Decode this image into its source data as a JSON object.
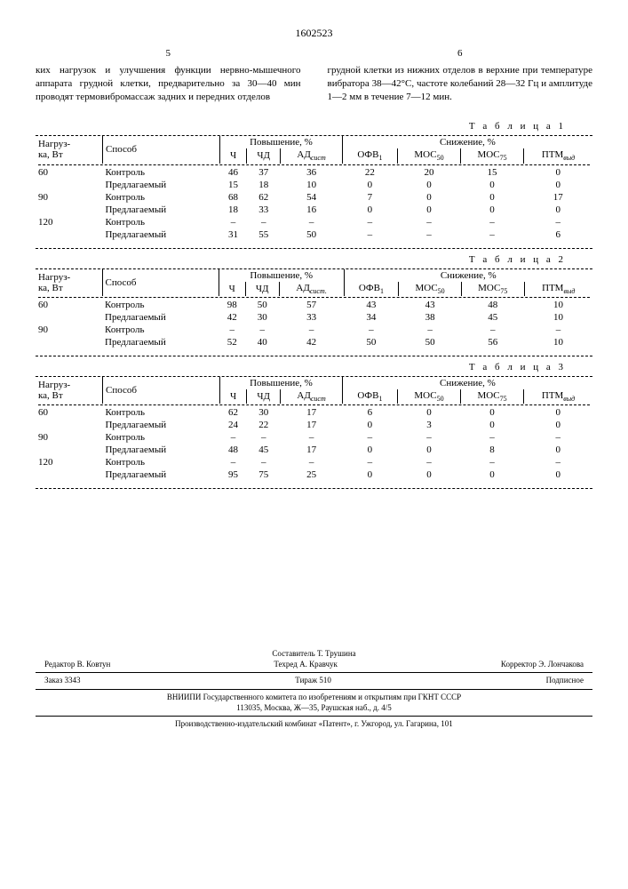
{
  "docnum": "1602523",
  "colLeft": {
    "num": "5",
    "text": "ких нагрузок и улучшения функции нервно-мышечного аппарата грудной клетки, предварительно за 30—40 мин проводят термовибромассаж задних и передних отделов"
  },
  "colRight": {
    "num": "6",
    "text": "грудной клетки из нижних отделов в верхние при температуре вибратора 38—42°С, частоте колебаний 28—32 Гц и амплитуде 1—2 мм в течение 7—12 мин."
  },
  "hdr": {
    "nagruzka": "Нагруз-",
    "ka": "ка, Вт",
    "sposob": "Способ",
    "pov": "Повышение, %",
    "sni": "Снижение, %",
    "ch": "Ч",
    "chd": "ЧД",
    "ad": "АД",
    "adSub": "сист",
    "ofv": "ОФВ",
    "ofvSub": "1",
    "mos": "МОС",
    "m50": "50",
    "m75": "75",
    "ptm": "ПТМ",
    "ptmSub": "выд"
  },
  "t1": {
    "cap": "Т а б л и ц а 1",
    "rows": [
      {
        "n": "60",
        "s": "Контроль",
        "v": [
          "46",
          "37",
          "36",
          "22",
          "20",
          "15",
          "0"
        ]
      },
      {
        "n": "",
        "s": "Предлагаемый",
        "v": [
          "15",
          "18",
          "10",
          "0",
          "0",
          "0",
          "0"
        ]
      },
      {
        "n": "90",
        "s": "Контроль",
        "v": [
          "68",
          "62",
          "54",
          "7",
          "0",
          "0",
          "17"
        ]
      },
      {
        "n": "",
        "s": "Предлагаемый",
        "v": [
          "18",
          "33",
          "16",
          "0",
          "0",
          "0",
          "0"
        ]
      },
      {
        "n": "120",
        "s": "Контроль",
        "v": [
          "–",
          "–",
          "–",
          "–",
          "–",
          "–",
          "–"
        ]
      },
      {
        "n": "",
        "s": "Предлагаемый",
        "v": [
          "31",
          "55",
          "50",
          "–",
          "–",
          "–",
          "6"
        ]
      }
    ]
  },
  "t2": {
    "cap": "Т а б л и ц а 2",
    "adSub": "сист.",
    "rows": [
      {
        "n": "60",
        "s": "Контроль",
        "v": [
          "98",
          "50",
          "57",
          "43",
          "43",
          "48",
          "10"
        ]
      },
      {
        "n": "",
        "s": "Предлагаемый",
        "v": [
          "42",
          "30",
          "33",
          "34",
          "38",
          "45",
          "10"
        ]
      },
      {
        "n": "90",
        "s": "Контроль",
        "v": [
          "–",
          "–",
          "–",
          "–",
          "–",
          "–",
          "–"
        ]
      },
      {
        "n": "",
        "s": "Предлагаемый",
        "v": [
          "52",
          "40",
          "42",
          "50",
          "50",
          "56",
          "10"
        ]
      }
    ]
  },
  "t3": {
    "cap": "Т а б л и ц а 3",
    "rows": [
      {
        "n": "60",
        "s": "Контроль",
        "v": [
          "62",
          "30",
          "17",
          "6",
          "0",
          "0",
          "0"
        ]
      },
      {
        "n": "",
        "s": "Предлагаемый",
        "v": [
          "24",
          "22",
          "17",
          "0",
          "3",
          "0",
          "0"
        ]
      },
      {
        "n": "90",
        "s": "Контроль",
        "v": [
          "–",
          "–",
          "–",
          "–",
          "–",
          "–",
          "–"
        ]
      },
      {
        "n": "",
        "s": "Предлагаемый",
        "v": [
          "48",
          "45",
          "17",
          "0",
          "0",
          "8",
          "0"
        ]
      },
      {
        "n": "120",
        "s": "Контроль",
        "v": [
          "–",
          "–",
          "–",
          "–",
          "–",
          "–",
          "–"
        ]
      },
      {
        "n": "",
        "s": "Предлагаемый",
        "v": [
          "95",
          "75",
          "25",
          "0",
          "0",
          "0",
          "0"
        ]
      }
    ]
  },
  "footer": {
    "comp": "Составитель Т. Трушина",
    "ed": "Редактор В. Ковтун",
    "tech": "Техред А. Кравчук",
    "cor": "Корректор Э. Лончакова",
    "zakaz": "Заказ 3343",
    "tir": "Тираж 510",
    "pod": "Подписное",
    "l1": "ВНИИПИ Государственного комитета по изобретениям и открытиям при ГКНТ СССР",
    "l2": "113035, Москва, Ж—35, Раушская наб., д. 4/5",
    "l3": "Производственно-издательский комбинат «Патент», г. Ужгород, ул. Гагарина, 101"
  }
}
